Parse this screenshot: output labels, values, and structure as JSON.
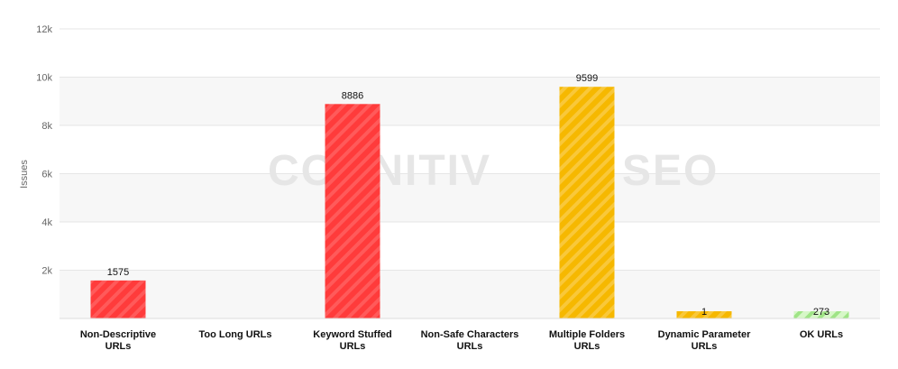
{
  "watermark": {
    "left": "COGNITIV",
    "right": "SEO"
  },
  "colors": {
    "red": "#ff3b3b",
    "yellow": "#f6b800",
    "green": "#b8f0a0",
    "grid": "#e6e6e6",
    "band": "#f7f7f7"
  },
  "chart_data": {
    "type": "bar",
    "ylabel": "Issues",
    "ylim": [
      0,
      12000
    ],
    "yticks": [
      {
        "value": 2000,
        "label": "2k"
      },
      {
        "value": 4000,
        "label": "4k"
      },
      {
        "value": 6000,
        "label": "6k"
      },
      {
        "value": 8000,
        "label": "8k"
      },
      {
        "value": 10000,
        "label": "10k"
      },
      {
        "value": 12000,
        "label": "12k"
      }
    ],
    "grid": true,
    "categories": [
      [
        "Non-Descriptive",
        "URLs"
      ],
      [
        "Too Long URLs"
      ],
      [
        "Keyword Stuffed",
        "URLs"
      ],
      [
        "Non-Safe Characters",
        "URLs"
      ],
      [
        "Multiple Folders",
        "URLs"
      ],
      [
        "Dynamic Parameter",
        "URLs"
      ],
      [
        "OK URLs"
      ]
    ],
    "values": [
      1575,
      null,
      8886,
      null,
      9599,
      1,
      273
    ],
    "data_labels": [
      "1575",
      "",
      "8886",
      "",
      "9599",
      "1",
      "273"
    ],
    "bar_colors": [
      "red",
      "red",
      "red",
      "red",
      "yellow",
      "yellow",
      "green"
    ]
  }
}
